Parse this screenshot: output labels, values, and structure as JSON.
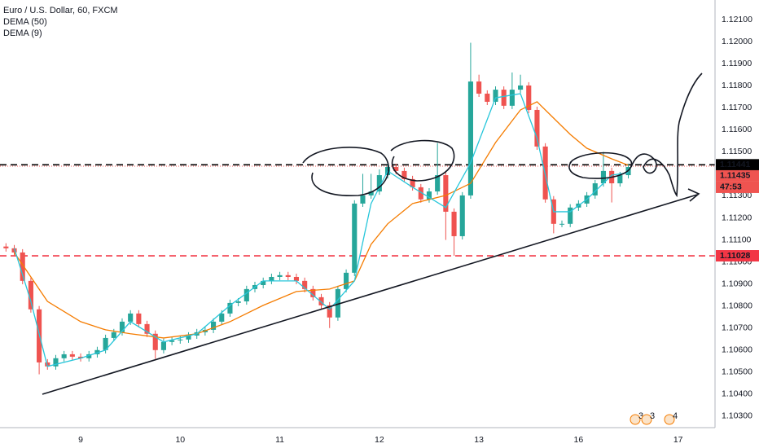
{
  "chart_data": {
    "type": "candlestick",
    "title": "Euro / U.S. Dollar, 60, FXCM",
    "x": [
      3,
      4,
      5,
      6,
      7,
      8,
      9,
      10,
      11,
      12,
      13,
      14,
      15,
      16,
      17,
      18,
      19,
      20,
      21,
      22,
      23,
      24,
      25,
      26,
      27,
      28,
      29,
      30,
      31,
      32,
      33,
      34,
      35,
      36,
      37,
      38,
      39,
      40,
      41,
      42,
      43,
      44,
      45,
      46,
      47,
      48,
      49,
      50,
      51,
      52,
      53,
      54,
      55,
      56,
      57,
      58,
      59,
      60,
      61,
      62,
      63,
      64,
      65,
      66,
      67,
      68,
      69,
      70,
      71,
      72,
      73,
      74,
      75,
      76,
      77,
      78
    ],
    "open": [
      1.1107,
      1.11062,
      1.11043,
      1.10914,
      1.10785,
      1.10544,
      1.10526,
      1.10563,
      1.10581,
      1.1057,
      1.10563,
      1.10581,
      1.106,
      1.10655,
      1.10681,
      1.10729,
      1.10766,
      1.10718,
      1.10674,
      1.106,
      1.10637,
      1.10644,
      1.10648,
      1.10666,
      1.10681,
      1.10692,
      1.10729,
      1.10766,
      1.10814,
      1.10821,
      1.10877,
      1.10895,
      1.10914,
      1.10932,
      1.1094,
      1.10932,
      1.10914,
      1.10877,
      1.1084,
      1.10803,
      1.10748,
      1.10877,
      1.10951,
      1.11265,
      1.11302,
      1.1132,
      1.11394,
      1.11431,
      1.11413,
      1.11376,
      1.11339,
      1.11284,
      1.1132,
      1.11394,
      1.11228,
      1.11117,
      1.11302,
      1.11819,
      1.11764,
      1.11727,
      1.11782,
      1.11709,
      1.11782,
      1.11801,
      1.1169,
      1.11524,
      1.11284,
      1.11173,
      1.11173,
      1.11247,
      1.11265,
      1.11302,
      1.11357,
      1.11413,
      1.11357,
      1.11394
    ],
    "high": [
      1.11085,
      1.11077,
      1.11058,
      1.10929,
      1.108,
      1.10559,
      1.10578,
      1.10596,
      1.10596,
      1.10585,
      1.10596,
      1.10615,
      1.1067,
      1.10696,
      1.10744,
      1.10781,
      1.10781,
      1.10733,
      1.10689,
      1.10652,
      1.10659,
      1.10663,
      1.10681,
      1.10696,
      1.10707,
      1.10744,
      1.10781,
      1.10829,
      1.10836,
      1.10892,
      1.1091,
      1.10929,
      1.10947,
      1.10955,
      1.10955,
      1.10947,
      1.10929,
      1.10892,
      1.10855,
      1.10818,
      1.10892,
      1.10966,
      1.1128,
      1.114,
      1.114,
      1.1142,
      1.11446,
      1.11446,
      1.11428,
      1.11391,
      1.11354,
      1.11335,
      1.1154,
      1.11409,
      1.11243,
      1.11317,
      1.11995,
      1.1185,
      1.11779,
      1.11797,
      1.11797,
      1.1186,
      1.1185,
      1.11816,
      1.11705,
      1.11539,
      1.11299,
      1.11188,
      1.11262,
      1.1128,
      1.11317,
      1.11372,
      1.115,
      1.11428,
      1.11409,
      1.11446
    ],
    "low": [
      1.11047,
      1.11028,
      1.10899,
      1.1077,
      1.1049,
      1.10511,
      1.10511,
      1.10548,
      1.10555,
      1.10548,
      1.10548,
      1.10566,
      1.10585,
      1.1064,
      1.10666,
      1.10714,
      1.10703,
      1.10659,
      1.1056,
      1.10585,
      1.10622,
      1.10629,
      1.10633,
      1.10651,
      1.10666,
      1.10677,
      1.10714,
      1.10751,
      1.10799,
      1.10806,
      1.10862,
      1.1088,
      1.10899,
      1.10917,
      1.10917,
      1.10899,
      1.10862,
      1.10825,
      1.10788,
      1.107,
      1.10733,
      1.10862,
      1.10936,
      1.1125,
      1.11287,
      1.11305,
      1.11379,
      1.11398,
      1.11361,
      1.11324,
      1.11269,
      1.11269,
      1.11305,
      1.111,
      1.11028,
      1.11102,
      1.11287,
      1.11749,
      1.11712,
      1.11712,
      1.11694,
      1.11694,
      1.11767,
      1.11675,
      1.11509,
      1.11269,
      1.1113,
      1.11158,
      1.11158,
      1.11232,
      1.1125,
      1.11287,
      1.11342,
      1.1127,
      1.11342,
      1.11379
    ],
    "close": [
      1.11062,
      1.11043,
      1.10914,
      1.10785,
      1.10544,
      1.10526,
      1.10563,
      1.10581,
      1.1057,
      1.10563,
      1.10581,
      1.106,
      1.10655,
      1.10681,
      1.10729,
      1.10766,
      1.10718,
      1.10674,
      1.106,
      1.10637,
      1.10644,
      1.10648,
      1.10666,
      1.10681,
      1.10692,
      1.10729,
      1.10766,
      1.10814,
      1.10821,
      1.10877,
      1.10895,
      1.10914,
      1.10932,
      1.1094,
      1.10932,
      1.10914,
      1.10877,
      1.1084,
      1.10803,
      1.10748,
      1.10877,
      1.10951,
      1.11265,
      1.11302,
      1.1132,
      1.11394,
      1.11431,
      1.11413,
      1.11376,
      1.11339,
      1.11284,
      1.1132,
      1.11394,
      1.11228,
      1.11117,
      1.11302,
      1.11819,
      1.11764,
      1.11727,
      1.11782,
      1.11709,
      1.11782,
      1.11801,
      1.1169,
      1.11524,
      1.11284,
      1.11173,
      1.11173,
      1.11247,
      1.11265,
      1.11302,
      1.11357,
      1.11413,
      1.11357,
      1.11394,
      1.11431
    ],
    "up_color": "#26a69a",
    "down_color": "#ef5350",
    "series": [
      {
        "name": "DEMA (50)",
        "color": "#f57c00",
        "x": [
          4,
          6,
          8,
          12,
          15,
          18,
          22,
          26,
          30,
          34,
          38,
          42,
          45,
          47,
          49,
          52,
          56,
          59,
          62,
          65,
          67,
          69,
          71,
          73,
          76,
          78
        ],
        "values": [
          1.11043,
          1.10932,
          1.10821,
          1.10729,
          1.10692,
          1.10674,
          1.10655,
          1.10674,
          1.10729,
          1.10803,
          1.10866,
          1.10877,
          1.10914,
          1.1108,
          1.11173,
          1.11265,
          1.11302,
          1.11357,
          1.11542,
          1.1169,
          1.11727,
          1.11653,
          1.11579,
          1.11516,
          1.11468,
          1.11439
        ]
      },
      {
        "name": "DEMA (9)",
        "color": "#26c6da",
        "x": [
          4,
          6,
          8,
          12,
          15,
          18,
          22,
          26,
          30,
          34,
          38,
          42,
          45,
          47,
          49,
          52,
          56,
          59,
          62,
          65,
          67,
          69,
          71,
          73,
          76,
          78
        ],
        "values": [
          1.11062,
          1.10821,
          1.10526,
          1.10563,
          1.106,
          1.10729,
          1.10637,
          1.10674,
          1.10803,
          1.10914,
          1.10914,
          1.10785,
          1.10914,
          1.11265,
          1.11413,
          1.11339,
          1.11247,
          1.1145,
          1.11745,
          1.11764,
          1.11561,
          1.11228,
          1.11228,
          1.11284,
          1.11394,
          1.11405
        ]
      }
    ],
    "hlines": [
      {
        "value": 1.11441,
        "color": "#000000"
      },
      {
        "value": 1.11028,
        "color": "#f23645"
      }
    ],
    "price": {
      "value": 1.11435,
      "countdown": "47:53",
      "color": "#ef5350"
    },
    "event_labels": [
      "3",
      "3",
      "4"
    ],
    "xlim": [
      2.28,
      88.45
    ],
    "ylim": [
      1.10248,
      1.12189
    ],
    "xticks": [
      {
        "value": 12,
        "label": "9"
      },
      {
        "value": 24,
        "label": "10"
      },
      {
        "value": 36,
        "label": "11"
      },
      {
        "value": 48,
        "label": "12"
      },
      {
        "value": 60,
        "label": "13"
      },
      {
        "value": 72,
        "label": "16"
      },
      {
        "value": 84,
        "label": "17"
      }
    ],
    "yticks": [
      {
        "value": 1.121,
        "label": "1.12100"
      },
      {
        "value": 1.12,
        "label": "1.12000"
      },
      {
        "value": 1.119,
        "label": "1.11900"
      },
      {
        "value": 1.118,
        "label": "1.11800"
      },
      {
        "value": 1.117,
        "label": "1.11700"
      },
      {
        "value": 1.116,
        "label": "1.11600"
      },
      {
        "value": 1.115,
        "label": "1.11500"
      },
      {
        "value": 1.114,
        "label": "1.11400"
      },
      {
        "value": 1.113,
        "label": "1.11300"
      },
      {
        "value": 1.112,
        "label": "1.11200"
      },
      {
        "value": 1.111,
        "label": "1.11100"
      },
      {
        "value": 1.11,
        "label": "1.11000"
      },
      {
        "value": 1.109,
        "label": "1.10900"
      },
      {
        "value": 1.108,
        "label": "1.10800"
      },
      {
        "value": 1.107,
        "label": "1.10700"
      },
      {
        "value": 1.106,
        "label": "1.10600"
      },
      {
        "value": 1.105,
        "label": "1.10500"
      },
      {
        "value": 1.104,
        "label": "1.10400"
      },
      {
        "value": 1.103,
        "label": "1.10300"
      }
    ],
    "grid": true
  }
}
